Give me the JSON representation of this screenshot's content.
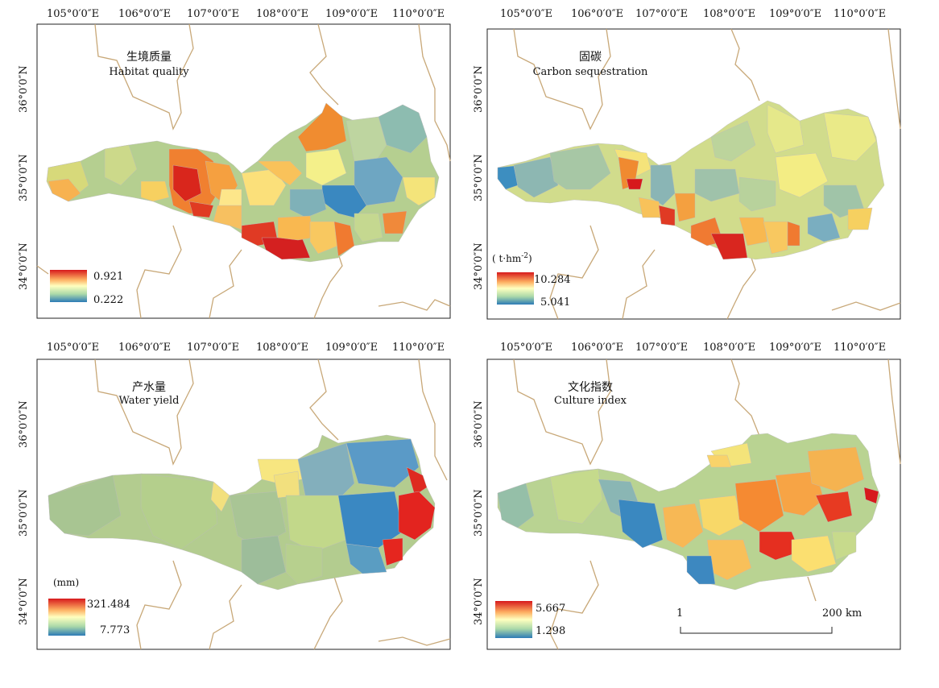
{
  "lon_labels": [
    "105°0′0″E",
    "106°0′0″E",
    "107°0′0″E",
    "108°0′0″E",
    "109°0′0″E",
    "110°0′0″E"
  ],
  "lat_labels": [
    "36°0′0″N",
    "35°0′0″N",
    "34°0′0″N"
  ],
  "panels": [
    {
      "id": "habitat",
      "title_cn": "生境质量",
      "title_en": "Habitat quality",
      "unit": "",
      "max": "0.921",
      "min": "0.222",
      "ramp": "spectral"
    },
    {
      "id": "carbon",
      "title_cn": "固碳",
      "title_en": "Carbon sequestration",
      "unit_prefix": "( t·hm",
      "unit_sup": "-2",
      "unit_suffix": ")",
      "max": "10.284",
      "min": "5.041",
      "ramp": "spectral"
    },
    {
      "id": "water",
      "title_cn": "产水量",
      "title_en": "Water yield",
      "unit": "(mm)",
      "max": "321.484",
      "min": "7.773",
      "ramp": "spectral"
    },
    {
      "id": "culture",
      "title_cn": "文化指数",
      "title_en": "Culture index",
      "unit": "",
      "max": "5.667",
      "min": "1.298",
      "ramp": "spectral"
    }
  ],
  "scale_bar": {
    "left_label": "1",
    "right_label": "200 km"
  },
  "colors": {
    "high": "#d7191c",
    "mid_high": "#fdae61",
    "mid": "#ffffbf",
    "mid_low": "#abd9e9",
    "low": "#2c7bb6",
    "boundary": "#c8a878"
  }
}
